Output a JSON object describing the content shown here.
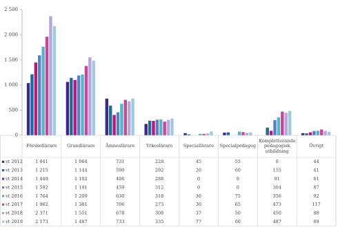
{
  "chart_data": {
    "type": "bar",
    "categories": [
      "Förskollärare",
      "Grundlärare",
      "Ämneslärare",
      "Yrkeslärare",
      "Speciallärare",
      "Specialpedagog",
      "Kompletterande pedagogisk utbildning",
      "Övrigt"
    ],
    "series": [
      {
        "name": "vt 2012",
        "color": "#3b2a8c",
        "values": [
          1041,
          1064,
          731,
          228,
          45,
          55,
          0,
          44
        ],
        "value_labels": [
          "1 041",
          "1 064",
          "731",
          "228",
          "45",
          "55",
          "0",
          "44"
        ]
      },
      {
        "name": "vt 2013",
        "color": "#1f6a98",
        "values": [
          1215,
          1144,
          590,
          292,
          20,
          60,
          155,
          41
        ],
        "value_labels": [
          "1 215",
          "1 144",
          "590",
          "292",
          "20",
          "60",
          "155",
          "41"
        ]
      },
      {
        "name": "vt 2014",
        "color": "#b3197f",
        "values": [
          1449,
          1102,
          406,
          288,
          0,
          0,
          91,
          61
        ],
        "value_labels": [
          "1 449",
          "1 102",
          "406",
          "288",
          "0",
          "0",
          "91",
          "61"
        ]
      },
      {
        "name": "vt 2015",
        "color": "#5b7fc7",
        "values": [
          1592,
          1191,
          459,
          312,
          0,
          0,
          304,
          87
        ],
        "value_labels": [
          "1 592",
          "1 191",
          "459",
          "312",
          "0",
          "0",
          "304",
          "87"
        ]
      },
      {
        "name": "vt 2016",
        "color": "#5ab2c8",
        "values": [
          1764,
          1209,
          630,
          318,
          30,
          75,
          356,
          92
        ],
        "value_labels": [
          "1 764",
          "1 209",
          "630",
          "318",
          "30",
          "75",
          "356",
          "92"
        ]
      },
      {
        "name": "vt 2017",
        "color": "#c2479b",
        "values": [
          1962,
          1381,
          706,
          273,
          30,
          65,
          473,
          117
        ],
        "value_labels": [
          "1 962",
          "1 381",
          "706",
          "273",
          "30",
          "65",
          "473",
          "117"
        ]
      },
      {
        "name": "vt 2018",
        "color": "#b9a4dd",
        "values": [
          2371,
          1551,
          678,
          308,
          37,
          50,
          450,
          88
        ],
        "value_labels": [
          "2 371",
          "1 551",
          "678",
          "308",
          "37",
          "50",
          "450",
          "88"
        ]
      },
      {
        "name": "vt 2019",
        "color": "#9fc9e1",
        "values": [
          2173,
          1487,
          733,
          335,
          77,
          60,
          487,
          69
        ],
        "value_labels": [
          "2 173",
          "1 487",
          "733",
          "335",
          "77",
          "60",
          "487",
          "69"
        ]
      }
    ],
    "ylim": [
      0,
      2500
    ],
    "yticks": [
      0,
      500,
      {
        "value": 1000,
        "label": "1 000"
      },
      {
        "value": 1500,
        "label": "1 500"
      },
      {
        "value": 2000,
        "label": "2 000"
      },
      {
        "value": 2500,
        "label": "2 500"
      }
    ],
    "grid": false
  }
}
